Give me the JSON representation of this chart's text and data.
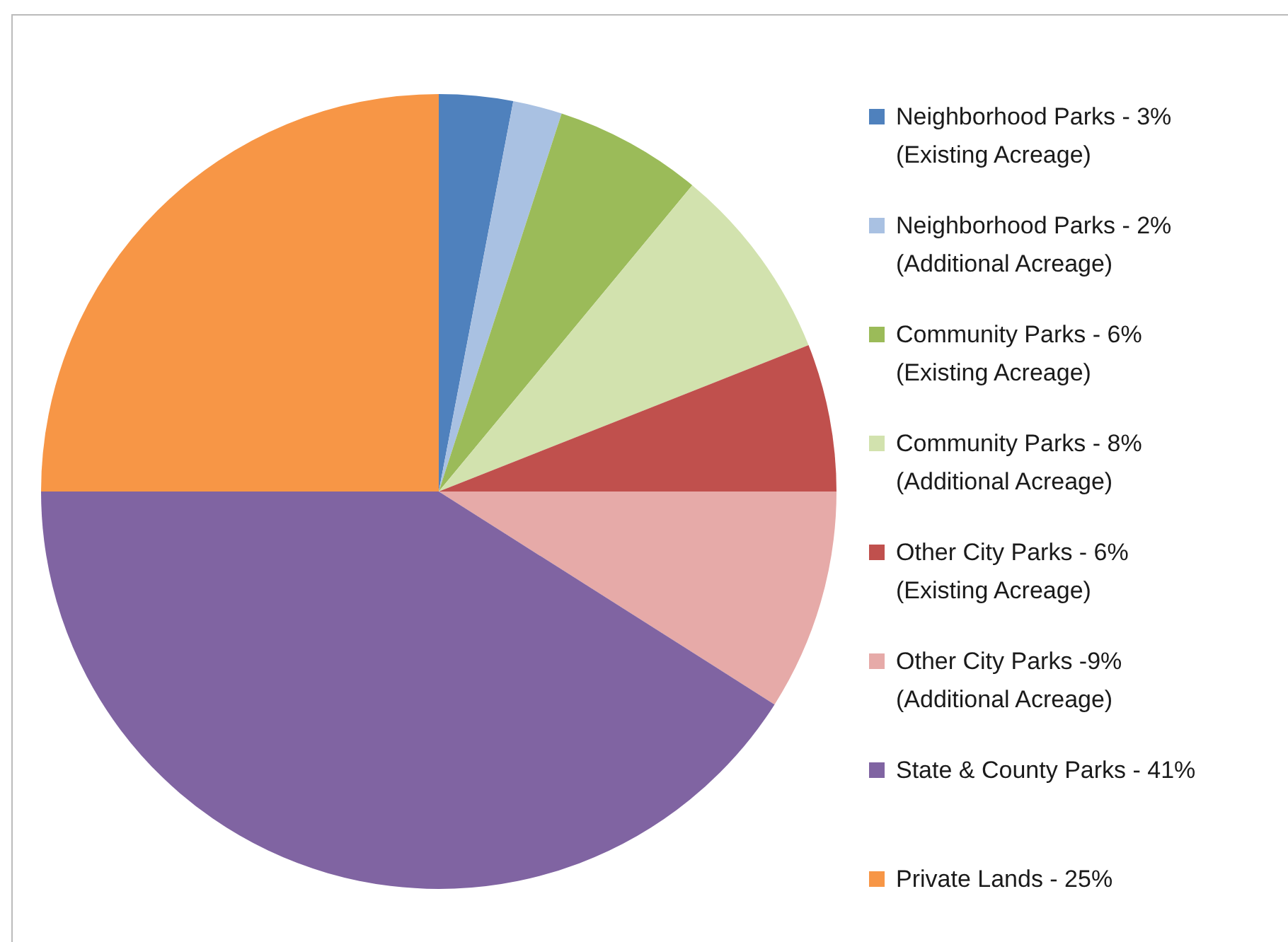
{
  "chart_data": {
    "type": "pie",
    "categories": [
      "Neighborhood Parks - 3%\n(Existing Acreage)",
      "Neighborhood Parks - 2%\n(Additional Acreage)",
      "Community Parks - 6%\n(Existing Acreage)",
      "Community Parks - 8%\n(Additional Acreage)",
      "Other City Parks - 6%\n(Existing Acreage)",
      "Other City Parks -9%\n(Additional Acreage)",
      "State & County Parks - 41%",
      "Private Lands - 25%"
    ],
    "values": [
      3,
      2,
      6,
      8,
      6,
      9,
      41,
      25
    ],
    "colors": [
      "#4f81bd",
      "#a9c1e2",
      "#9bbb59",
      "#d2e2ae",
      "#c0504d",
      "#e6aaa8",
      "#8064a2",
      "#f79646"
    ],
    "legend": "right"
  }
}
